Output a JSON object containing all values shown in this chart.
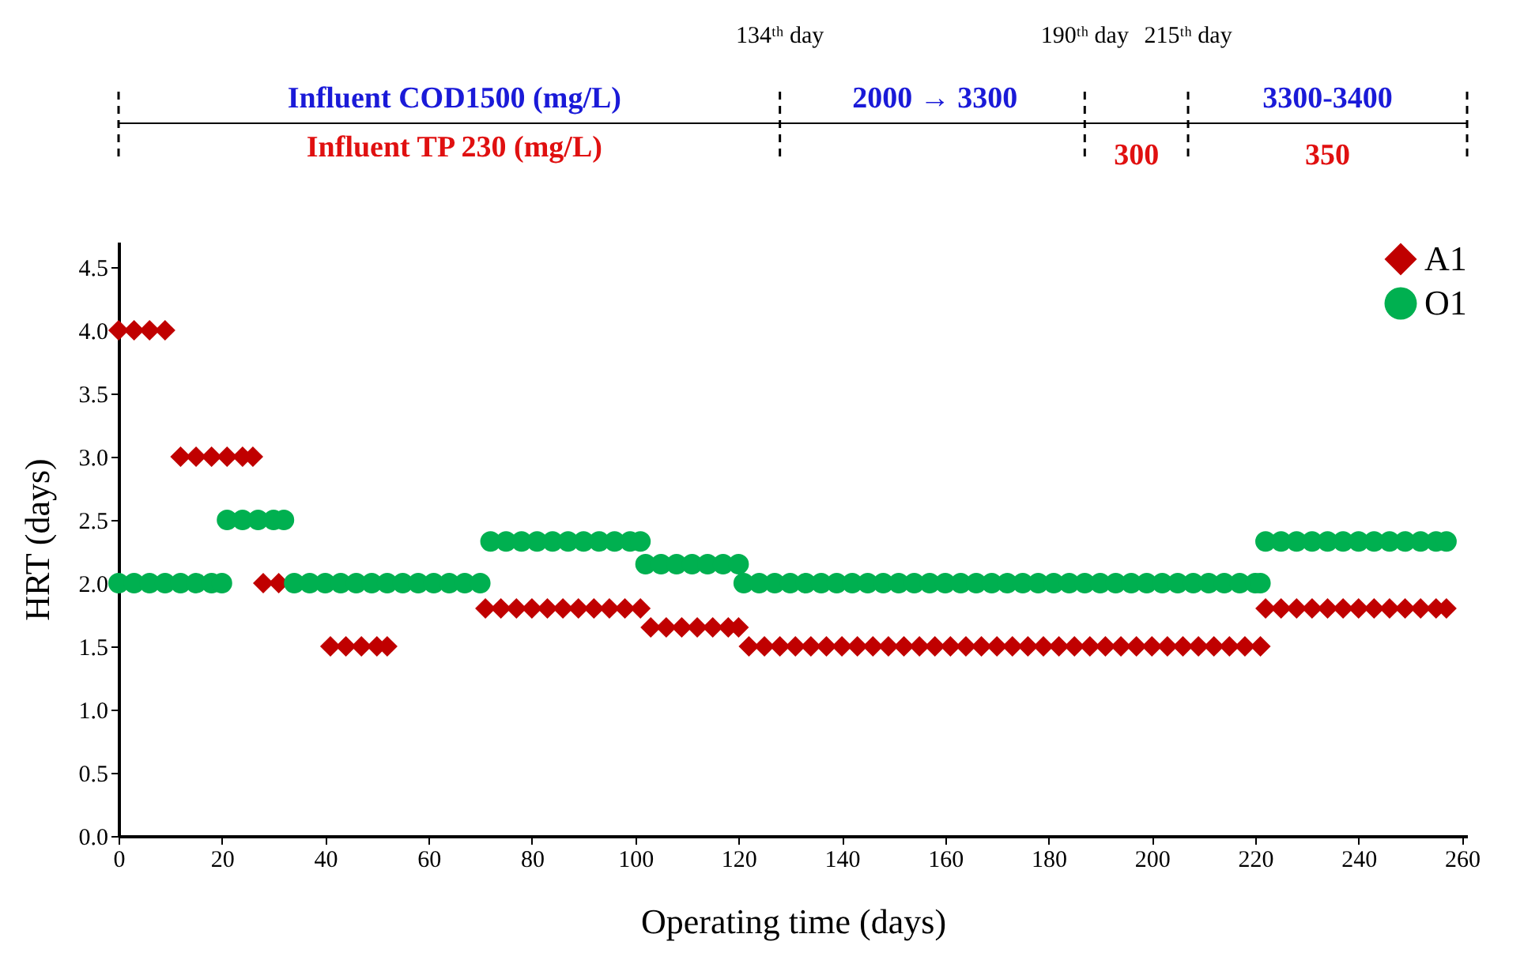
{
  "chart_data": {
    "type": "scatter",
    "xlabel": "Operating time (days)",
    "ylabel": "HRT (days)",
    "xlim": [
      0,
      261
    ],
    "xticks": [
      0,
      20,
      40,
      60,
      80,
      100,
      120,
      140,
      160,
      180,
      200,
      220,
      240,
      260
    ],
    "ylim": [
      0,
      4.7
    ],
    "yticks": [
      {
        "value": 0,
        "label": "0.0"
      },
      0.5,
      {
        "value": 1,
        "label": "1.0"
      },
      1.5,
      {
        "value": 2,
        "label": "2.0"
      },
      2.5,
      {
        "value": 3,
        "label": "3.0"
      },
      3.5,
      {
        "value": 4,
        "label": "4.0"
      },
      4.5
    ],
    "grid": false,
    "legend": "top right",
    "series": [
      {
        "name": "A1",
        "color": "#c00000",
        "marker": "diamond",
        "x": [
          0,
          3,
          6,
          9,
          12,
          15,
          18,
          21,
          24,
          26,
          28,
          31,
          41,
          44,
          47,
          50,
          52,
          71,
          74,
          77,
          80,
          83,
          86,
          89,
          92,
          95,
          98,
          101,
          103,
          106,
          109,
          112,
          115,
          118,
          120,
          122,
          125,
          128,
          131,
          134,
          137,
          140,
          143,
          146,
          149,
          152,
          155,
          158,
          161,
          164,
          167,
          170,
          173,
          176,
          179,
          182,
          185,
          188,
          191,
          194,
          197,
          200,
          203,
          206,
          209,
          212,
          215,
          218,
          221,
          222,
          225,
          228,
          231,
          234,
          237,
          240,
          243,
          246,
          249,
          252,
          255,
          257
        ],
        "values": [
          4,
          4,
          4,
          4,
          3,
          3,
          3,
          3,
          3,
          3,
          2,
          2,
          1.5,
          1.5,
          1.5,
          1.5,
          1.5,
          1.8,
          1.8,
          1.8,
          1.8,
          1.8,
          1.8,
          1.8,
          1.8,
          1.8,
          1.8,
          1.8,
          1.65,
          1.65,
          1.65,
          1.65,
          1.65,
          1.65,
          1.65,
          1.5,
          1.5,
          1.5,
          1.5,
          1.5,
          1.5,
          1.5,
          1.5,
          1.5,
          1.5,
          1.5,
          1.5,
          1.5,
          1.5,
          1.5,
          1.5,
          1.5,
          1.5,
          1.5,
          1.5,
          1.5,
          1.5,
          1.5,
          1.5,
          1.5,
          1.5,
          1.5,
          1.5,
          1.5,
          1.5,
          1.5,
          1.5,
          1.5,
          1.5,
          1.8,
          1.8,
          1.8,
          1.8,
          1.8,
          1.8,
          1.8,
          1.8,
          1.8,
          1.8,
          1.8,
          1.8,
          1.8
        ]
      },
      {
        "name": "O1",
        "color": "#00b050",
        "marker": "circle",
        "x": [
          0,
          3,
          6,
          9,
          12,
          15,
          18,
          20,
          21,
          24,
          27,
          30,
          32,
          34,
          37,
          40,
          43,
          46,
          49,
          52,
          55,
          58,
          61,
          64,
          67,
          70,
          72,
          75,
          78,
          81,
          84,
          87,
          90,
          93,
          96,
          99,
          101,
          102,
          105,
          108,
          111,
          114,
          117,
          120,
          121,
          124,
          127,
          130,
          133,
          136,
          139,
          142,
          145,
          148,
          151,
          154,
          157,
          160,
          163,
          166,
          169,
          172,
          175,
          178,
          181,
          184,
          187,
          190,
          193,
          196,
          199,
          202,
          205,
          208,
          211,
          214,
          217,
          220,
          221,
          222,
          225,
          228,
          231,
          234,
          237,
          240,
          243,
          246,
          249,
          252,
          255,
          257
        ],
        "values": [
          2,
          2,
          2,
          2,
          2,
          2,
          2,
          2,
          2.5,
          2.5,
          2.5,
          2.5,
          2.5,
          2,
          2,
          2,
          2,
          2,
          2,
          2,
          2,
          2,
          2,
          2,
          2,
          2,
          2.33,
          2.33,
          2.33,
          2.33,
          2.33,
          2.33,
          2.33,
          2.33,
          2.33,
          2.33,
          2.33,
          2.15,
          2.15,
          2.15,
          2.15,
          2.15,
          2.15,
          2.15,
          2,
          2,
          2,
          2,
          2,
          2,
          2,
          2,
          2,
          2,
          2,
          2,
          2,
          2,
          2,
          2,
          2,
          2,
          2,
          2,
          2,
          2,
          2,
          2,
          2,
          2,
          2,
          2,
          2,
          2,
          2,
          2,
          2,
          2,
          2,
          2.33,
          2.33,
          2.33,
          2.33,
          2.33,
          2.33,
          2.33,
          2.33,
          2.33,
          2.33,
          2.33,
          2.33,
          2.33
        ]
      }
    ],
    "annotations": [
      "134ᵗʰ day",
      "190ᵗʰ day",
      "215ᵗʰ day",
      "Influent COD1500 (mg/L)",
      "Influent TP 230 (mg/L)",
      "2000 → 3300",
      "300",
      "3300-3400",
      "350"
    ]
  }
}
